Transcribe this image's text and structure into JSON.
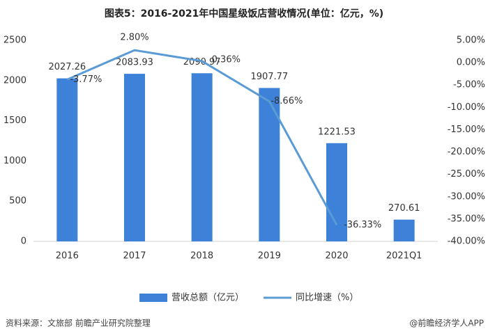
{
  "chart_data": {
    "type": "bar-line",
    "title": "图表5：2016-2021年中国星级饭店营收情况(单位：亿元，%)",
    "categories": [
      "2016",
      "2017",
      "2018",
      "2019",
      "2020",
      "2021Q1"
    ],
    "series": [
      {
        "name": "营收总额（亿元）",
        "color": "#3d82d8",
        "type": "bar",
        "values": [
          2027.26,
          2083.93,
          2090.97,
          1907.77,
          1221.53,
          270.61
        ]
      },
      {
        "name": "同比增速（%）",
        "color": "#5b9bd5",
        "type": "line",
        "axis": "y2",
        "values": [
          -3.77,
          2.8,
          0.36,
          -8.66,
          -36.33,
          null
        ],
        "value_labels": [
          "-3.77%",
          "2.80%",
          "0.36%",
          "-8.66%",
          "-36.33%",
          null
        ]
      }
    ],
    "ylim": [
      0,
      2500
    ],
    "yticks": [
      0,
      500,
      1000,
      1500,
      2000,
      2500
    ],
    "y2lim": [
      -40,
      5
    ],
    "y2ticks": [
      {
        "value": 5,
        "label": "5.00%"
      },
      {
        "value": 0,
        "label": "0.00%"
      },
      {
        "value": -5,
        "label": "-5.00%"
      },
      {
        "value": -10,
        "label": "-10.00%"
      },
      {
        "value": -15,
        "label": "-15.00%"
      },
      {
        "value": -20,
        "label": "-20.00%"
      },
      {
        "value": -25,
        "label": "-25.00%"
      },
      {
        "value": -30,
        "label": "-30.00%"
      },
      {
        "value": -35,
        "label": "-35.00%"
      },
      {
        "value": -40,
        "label": "-40.00%"
      }
    ],
    "grid": false,
    "legend": "bottom",
    "source": "资料来源：文旅部 前瞻产业研究院整理",
    "credit": "@前瞻经济学人APP"
  }
}
